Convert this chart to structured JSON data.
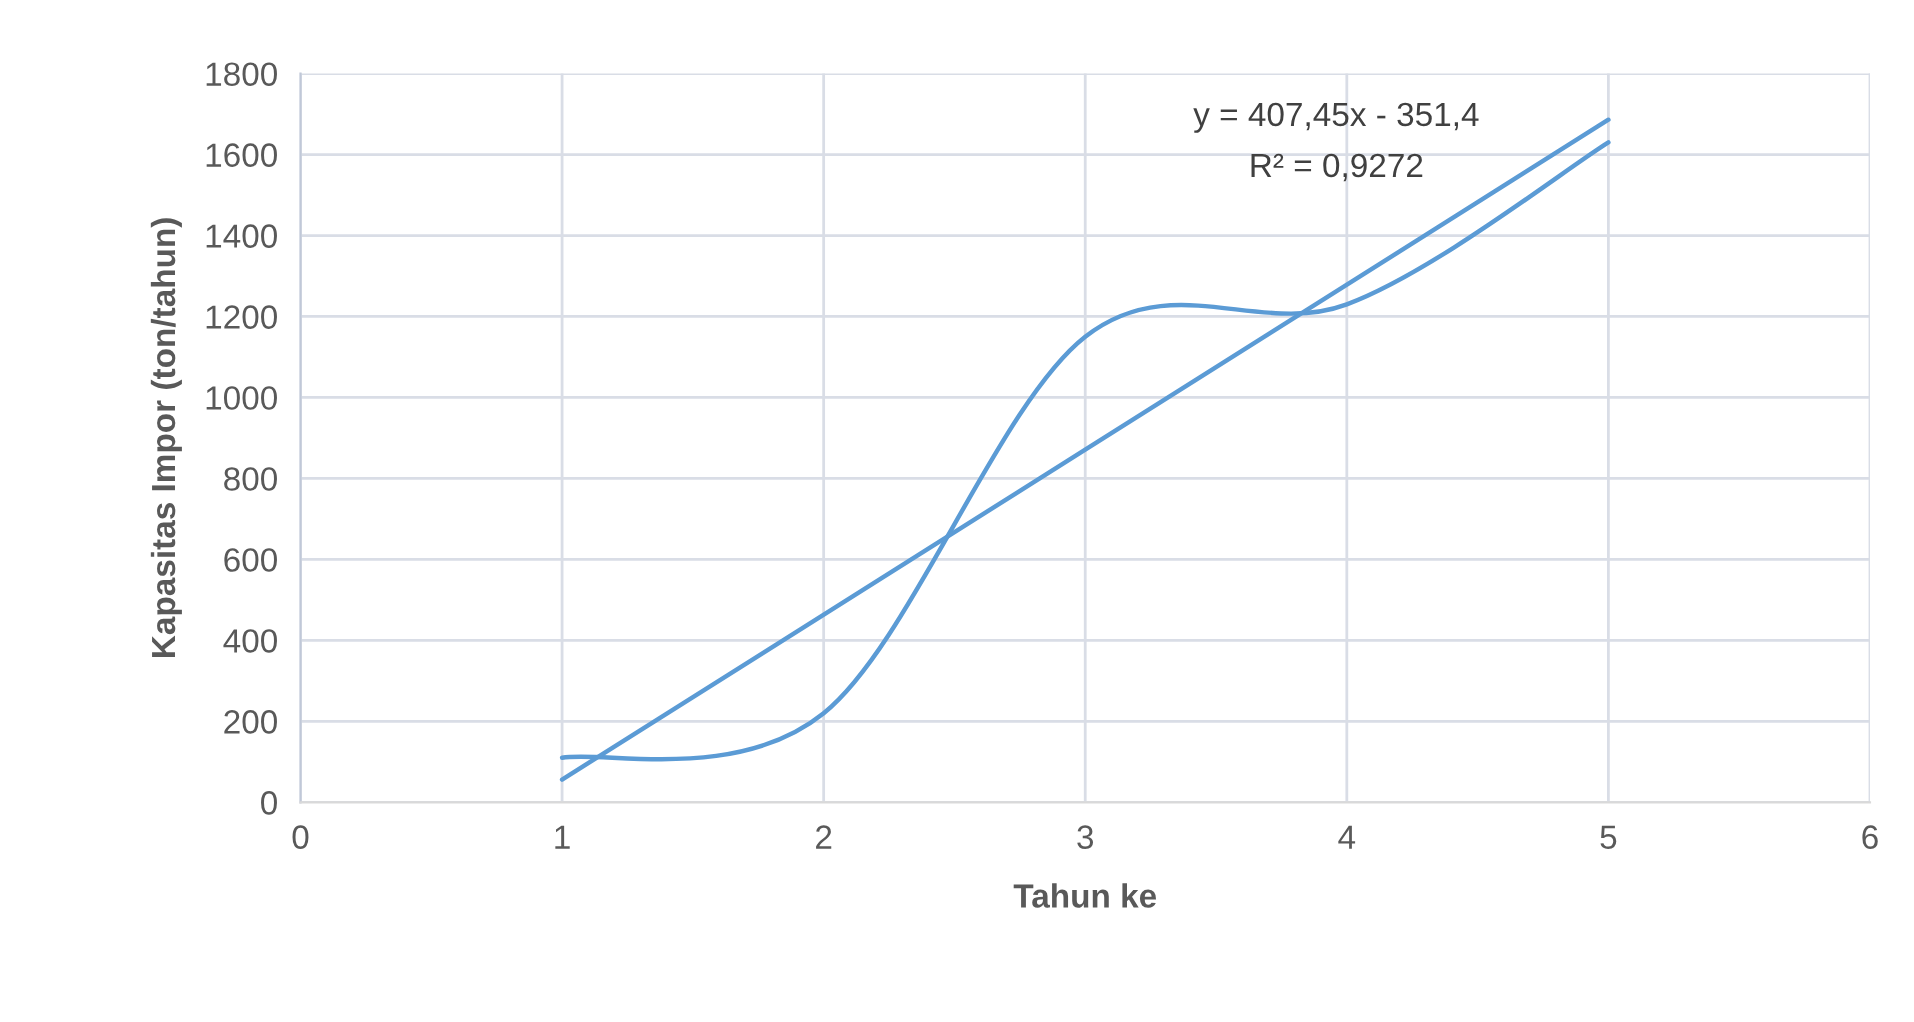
{
  "chart_data": {
    "type": "line",
    "xlabel": "Tahun ke",
    "ylabel": "Kapasitas Impor (ton/tahun)",
    "x": [
      1,
      2,
      3,
      4,
      5
    ],
    "series": [
      {
        "color": "#5b9bd5",
        "values": [
          110,
          220,
          1150,
          1230,
          1630
        ]
      },
      {
        "color": "#5b9bd5",
        "x": [
          1,
          5
        ],
        "values": [
          56,
          1686
        ]
      }
    ],
    "annotations": [
      "y = 407,45x - 351,4",
      "R² = 0,9272"
    ],
    "xlim": [
      0,
      6
    ],
    "xticks": [
      0,
      1,
      2,
      3,
      4,
      5,
      6
    ],
    "ylim": [
      0,
      1800
    ],
    "yticks": [
      0,
      200,
      400,
      600,
      800,
      1000,
      1200,
      1400,
      1600,
      1800
    ],
    "grid": true,
    "marker": "none",
    "line_style": "solid"
  }
}
